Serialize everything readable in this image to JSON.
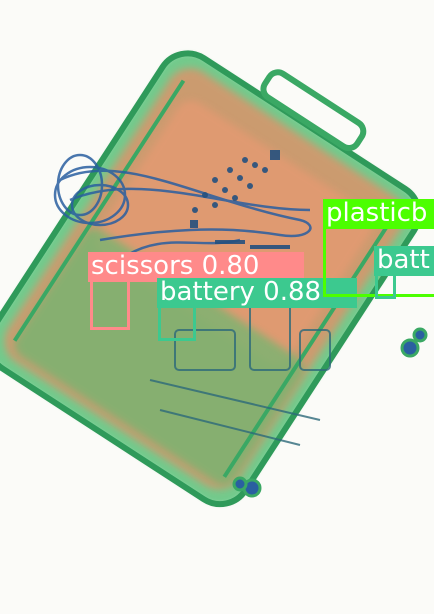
{
  "colors": {
    "scissors": "#ff8a8a",
    "battery": "#3cc98f",
    "plastic": "#4cff00",
    "scan_orange": "#e8875f",
    "scan_green": "#4fbf6a",
    "scan_blue": "#2a5fa0"
  },
  "detections": [
    {
      "class_label": "scissors",
      "label": "scissors 0.80",
      "color_key": "scissors"
    },
    {
      "class_label": "battery",
      "label": "battery 0.88",
      "color_key": "battery"
    },
    {
      "class_label": "plastic bottle",
      "label": "plasticb",
      "color_key": "plastic"
    },
    {
      "class_label": "battery",
      "label": "batt",
      "color_key": "battery"
    }
  ]
}
